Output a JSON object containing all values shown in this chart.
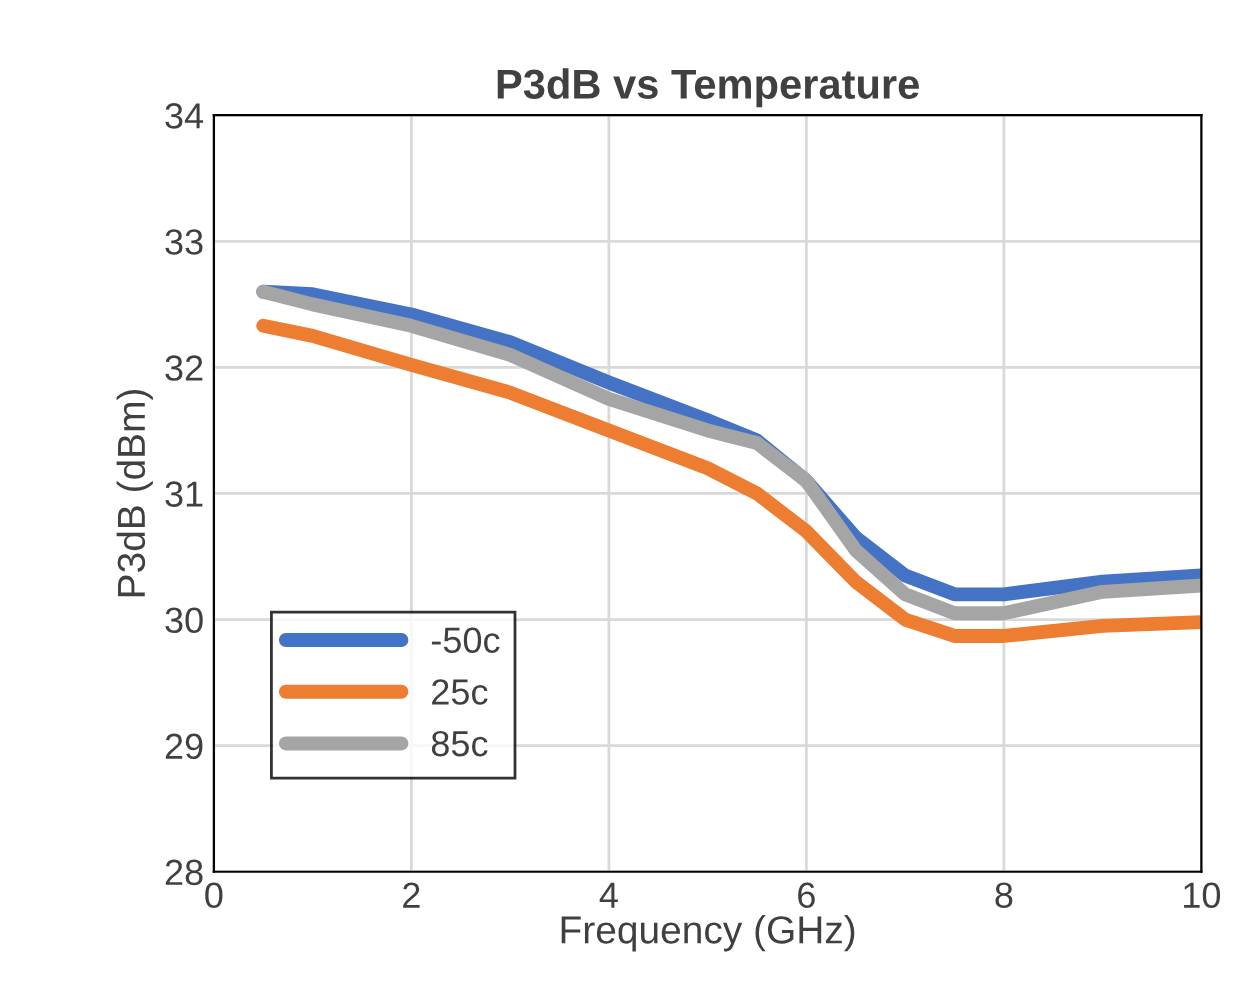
{
  "chart_data": {
    "type": "line",
    "title": "P3dB vs Temperature",
    "xlabel": "Frequency (GHz)",
    "ylabel": "P3dB (dBm)",
    "x": [
      0.5,
      1,
      2,
      3,
      4,
      5,
      5.5,
      6,
      6.5,
      7,
      7.5,
      8,
      9,
      10
    ],
    "series": [
      {
        "name": "-50c",
        "color": "#4472c4",
        "values": [
          32.6,
          32.58,
          32.42,
          32.2,
          31.88,
          31.58,
          31.42,
          31.1,
          30.65,
          30.35,
          30.2,
          30.2,
          30.3,
          30.35
        ]
      },
      {
        "name": "25c",
        "color": "#ed7d31",
        "values": [
          32.33,
          32.25,
          32.02,
          31.8,
          31.5,
          31.2,
          31.0,
          30.7,
          30.3,
          30.0,
          29.87,
          29.87,
          29.95,
          29.98
        ]
      },
      {
        "name": "85c",
        "color": "#a5a5a5",
        "values": [
          32.6,
          32.5,
          32.33,
          32.1,
          31.75,
          31.5,
          31.4,
          31.1,
          30.55,
          30.2,
          30.05,
          30.05,
          30.22,
          30.27
        ]
      }
    ],
    "xlim": [
      0,
      10
    ],
    "xticks": [
      0,
      2,
      4,
      6,
      8,
      10
    ],
    "ylim": [
      28,
      34
    ],
    "yticks": [
      28,
      29,
      30,
      31,
      32,
      33,
      34
    ],
    "grid": true,
    "legend": "bottom left",
    "marker": "none",
    "line_style": "solid"
  }
}
